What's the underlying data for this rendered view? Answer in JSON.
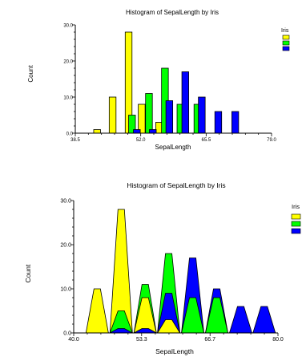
{
  "colors": {
    "series1": "#ffff00",
    "series2": "#00ff00",
    "series3": "#0000ff",
    "outline": "#000000"
  },
  "chart_data": [
    {
      "type": "bar",
      "title": "Histogram of SepalLength by Iris",
      "xlabel": "SepalLength",
      "ylabel": "Count",
      "xlim": [
        38.5,
        79.0
      ],
      "ylim": [
        0,
        30
      ],
      "xticks": [
        "38.5",
        "52.0",
        "65.5",
        "79.0"
      ],
      "yticks": [
        "0.0",
        "10.0",
        "20.0",
        "30.0"
      ],
      "legend_title": "Iris",
      "legend_position": "top-right",
      "grid": false,
      "series": [
        {
          "values": [
            {
              "x": 43.0,
              "y": 1
            },
            {
              "x": 46.2,
              "y": 10
            },
            {
              "x": 49.5,
              "y": 28
            },
            {
              "x": 52.2,
              "y": 8
            },
            {
              "x": 55.8,
              "y": 3
            }
          ]
        },
        {
          "values": [
            {
              "x": 50.2,
              "y": 5
            },
            {
              "x": 53.7,
              "y": 11
            },
            {
              "x": 57.0,
              "y": 18
            },
            {
              "x": 60.2,
              "y": 8
            },
            {
              "x": 63.7,
              "y": 8
            }
          ]
        },
        {
          "values": [
            {
              "x": 51.2,
              "y": 1
            },
            {
              "x": 54.5,
              "y": 1
            },
            {
              "x": 57.9,
              "y": 9
            },
            {
              "x": 61.2,
              "y": 17
            },
            {
              "x": 64.6,
              "y": 10
            },
            {
              "x": 68.0,
              "y": 6
            },
            {
              "x": 71.5,
              "y": 6
            }
          ]
        }
      ]
    },
    {
      "type": "area",
      "title": "Histogram of SepalLength by Iris",
      "xlabel": "SepalLength",
      "ylabel": "Count",
      "xlim": [
        40.0,
        80.0
      ],
      "ylim": [
        0,
        30
      ],
      "xticks": [
        "40.0",
        "53.3",
        "66.7",
        "80.0"
      ],
      "yticks": [
        "0.0",
        "10.0",
        "20.0",
        "30.0"
      ],
      "legend_title": "Iris",
      "legend_position": "top-right",
      "grid": false,
      "series": [
        {
          "values": [
            {
              "x": 44.6,
              "y": 10
            },
            {
              "x": 49.3,
              "y": 28
            },
            {
              "x": 54.0,
              "y": 8
            },
            {
              "x": 58.6,
              "y": 3
            }
          ]
        },
        {
          "values": [
            {
              "x": 49.3,
              "y": 5
            },
            {
              "x": 54.0,
              "y": 11
            },
            {
              "x": 58.6,
              "y": 18
            },
            {
              "x": 63.3,
              "y": 8
            },
            {
              "x": 68.0,
              "y": 8
            }
          ]
        },
        {
          "values": [
            {
              "x": 49.3,
              "y": 1
            },
            {
              "x": 54.0,
              "y": 1
            },
            {
              "x": 58.6,
              "y": 9
            },
            {
              "x": 63.3,
              "y": 17
            },
            {
              "x": 68.0,
              "y": 10
            },
            {
              "x": 72.7,
              "y": 6
            },
            {
              "x": 77.3,
              "y": 6
            }
          ]
        }
      ]
    }
  ]
}
